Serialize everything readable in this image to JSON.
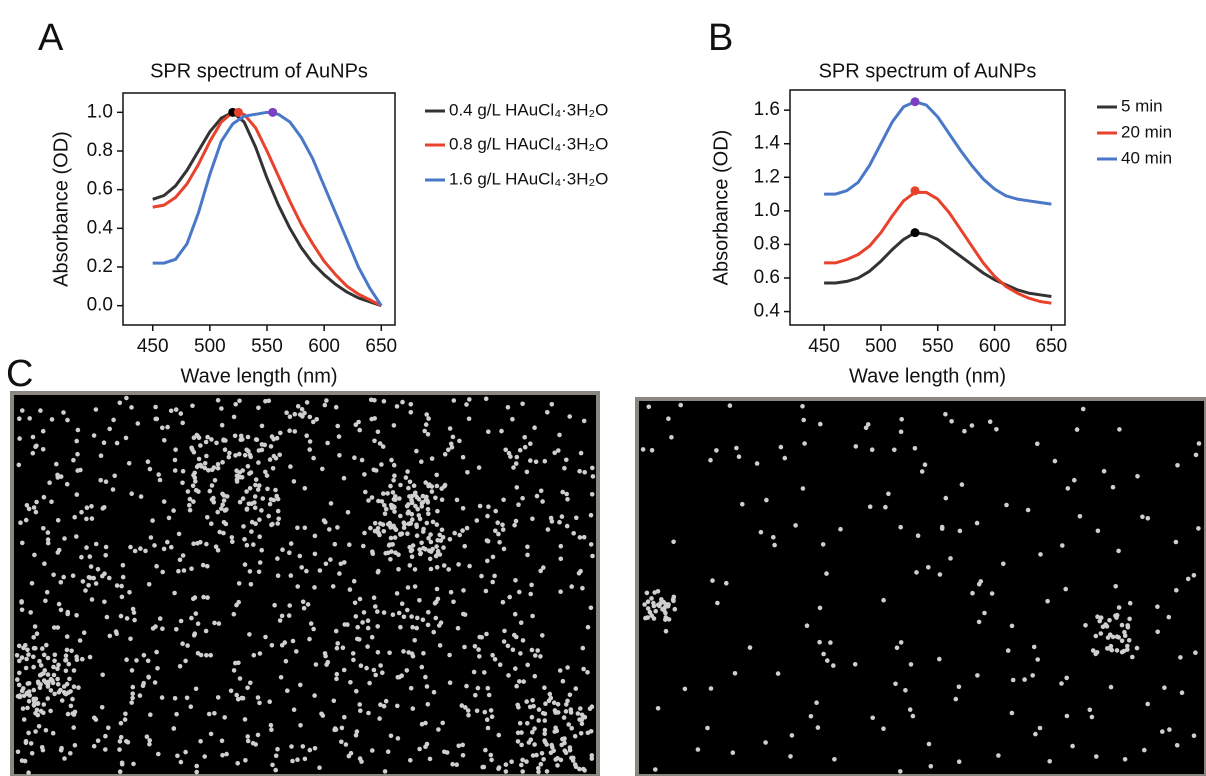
{
  "panel_labels": [
    "A",
    "B",
    "C"
  ],
  "chart_data": [
    {
      "type": "line",
      "title": "SPR spectrum of AuNPs",
      "x_label": "Wave length (nm)",
      "y_label": "Absorbance (OD)",
      "x": [
        450,
        460,
        470,
        480,
        490,
        500,
        510,
        520,
        530,
        540,
        550,
        560,
        570,
        580,
        590,
        600,
        610,
        620,
        630,
        640,
        650
      ],
      "series": [
        {
          "name": "0.4 g/L HAuCl₄·3H₂O",
          "color": "#333333",
          "values": [
            0.55,
            0.57,
            0.62,
            0.7,
            0.8,
            0.9,
            0.97,
            1.0,
            0.95,
            0.82,
            0.66,
            0.52,
            0.4,
            0.3,
            0.22,
            0.16,
            0.11,
            0.07,
            0.04,
            0.02,
            0.0
          ]
        },
        {
          "name": "0.8 g/L HAuCl₄·3H₂O",
          "color": "#e8412c",
          "values": [
            0.51,
            0.52,
            0.56,
            0.63,
            0.73,
            0.85,
            0.95,
            1.0,
            0.99,
            0.92,
            0.8,
            0.67,
            0.54,
            0.42,
            0.32,
            0.23,
            0.16,
            0.1,
            0.06,
            0.03,
            0.0
          ]
        },
        {
          "name": "1.6 g/L HAuCl₄·3H₂O",
          "color": "#4a78c9",
          "values": [
            0.22,
            0.22,
            0.24,
            0.32,
            0.48,
            0.68,
            0.85,
            0.94,
            0.98,
            0.99,
            1.0,
            0.99,
            0.95,
            0.87,
            0.76,
            0.62,
            0.48,
            0.34,
            0.2,
            0.09,
            0.0
          ]
        }
      ],
      "points": {
        "x": [
          520,
          525,
          555
        ],
        "y": [
          1.0,
          1.0,
          1.0
        ],
        "colors": [
          "#000000",
          "#e8412c",
          "#7b3fc4"
        ]
      },
      "xlim": [
        424,
        662
      ],
      "ylim": [
        -0.1,
        1.1
      ],
      "xticks": [
        450,
        500,
        550,
        600,
        650
      ],
      "yticks": [
        {
          "value": 0,
          "label": "0.0"
        },
        0.2,
        0.4,
        0.6,
        0.8,
        {
          "value": 1,
          "label": "1.0"
        }
      ]
    },
    {
      "type": "line",
      "title": "SPR spectrum of AuNPs",
      "x_label": "Wave length (nm)",
      "y_label": "Absorbance (OD)",
      "x": [
        450,
        460,
        470,
        480,
        490,
        500,
        510,
        520,
        530,
        540,
        550,
        560,
        570,
        580,
        590,
        600,
        610,
        620,
        630,
        640,
        650
      ],
      "series": [
        {
          "name": "5 min",
          "color": "#333333",
          "values": [
            0.57,
            0.57,
            0.58,
            0.6,
            0.64,
            0.7,
            0.77,
            0.83,
            0.87,
            0.86,
            0.83,
            0.78,
            0.73,
            0.68,
            0.63,
            0.59,
            0.56,
            0.53,
            0.51,
            0.5,
            0.49
          ]
        },
        {
          "name": "20 min",
          "color": "#e8412c",
          "values": [
            0.69,
            0.69,
            0.71,
            0.74,
            0.79,
            0.87,
            0.97,
            1.06,
            1.11,
            1.11,
            1.07,
            0.99,
            0.89,
            0.79,
            0.69,
            0.61,
            0.55,
            0.51,
            0.48,
            0.46,
            0.45
          ]
        },
        {
          "name": "40 min",
          "color": "#4a78c9",
          "values": [
            1.1,
            1.1,
            1.12,
            1.17,
            1.27,
            1.4,
            1.53,
            1.62,
            1.65,
            1.63,
            1.56,
            1.46,
            1.36,
            1.27,
            1.19,
            1.13,
            1.09,
            1.07,
            1.06,
            1.05,
            1.04
          ]
        }
      ],
      "points": {
        "x": [
          530,
          530,
          530
        ],
        "y": [
          0.87,
          1.12,
          1.65
        ],
        "colors": [
          "#000000",
          "#e8412c",
          "#7b3fc4"
        ]
      },
      "xlim": [
        420,
        662
      ],
      "ylim": [
        0.32,
        1.72
      ],
      "xticks": [
        450,
        500,
        550,
        600,
        650
      ],
      "yticks": [
        0.4,
        0.6,
        0.8,
        {
          "value": 1,
          "label": "1.0"
        },
        1.2,
        1.4,
        1.6
      ]
    }
  ]
}
